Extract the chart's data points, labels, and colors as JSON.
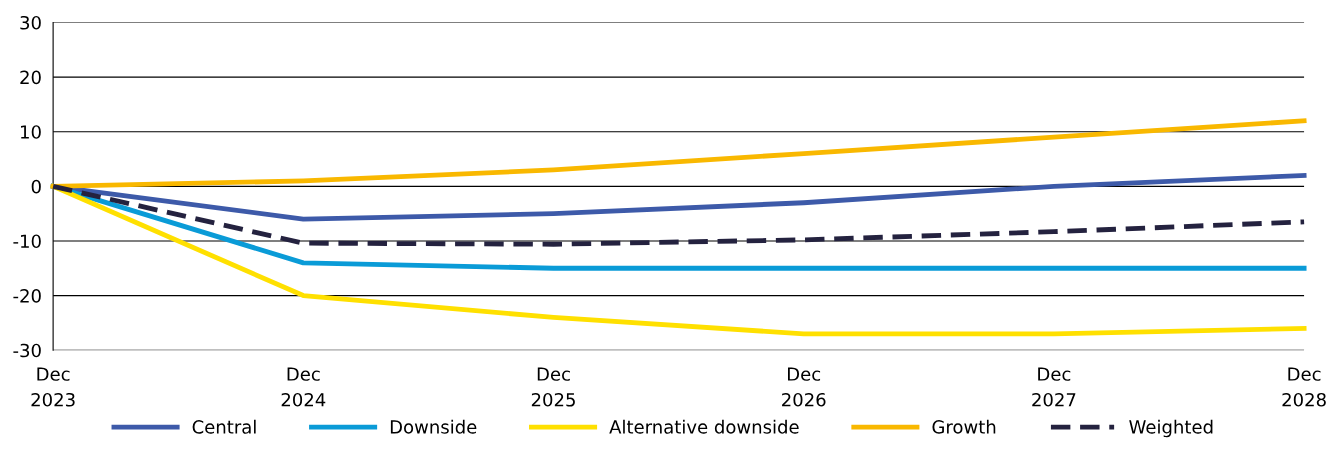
{
  "chart_data": {
    "type": "line",
    "categories": [
      "Dec\n2023",
      "Dec\n2024",
      "Dec\n2025",
      "Dec\n2026",
      "Dec\n2027",
      "Dec\n2028"
    ],
    "series": [
      {
        "name": "Central",
        "color": "#3d5aa9",
        "values": [
          0,
          -6,
          -5,
          -3,
          0,
          2
        ]
      },
      {
        "name": "Downside",
        "color": "#0a9bd7",
        "values": [
          0,
          -14,
          -15,
          -15,
          -15,
          -15
        ]
      },
      {
        "name": "Alternative downside",
        "color": "#ffe000",
        "values": [
          0,
          -20,
          -24,
          -27,
          -27,
          -26
        ]
      },
      {
        "name": "Growth",
        "color": "#f9b800",
        "values": [
          0,
          1,
          3,
          6,
          9,
          12
        ]
      },
      {
        "name": "Weighted",
        "color": "#24223f",
        "line_style": "dashed",
        "values": [
          0,
          -10.4,
          -10.6,
          -9.8,
          -8.3,
          -6.5
        ]
      }
    ],
    "ylim": [
      -30,
      30
    ],
    "yticks": [
      -30,
      -20,
      -10,
      0,
      10,
      20,
      30
    ],
    "grid": "y",
    "legend": "bottom",
    "marker": "none",
    "line_style": "solid"
  }
}
